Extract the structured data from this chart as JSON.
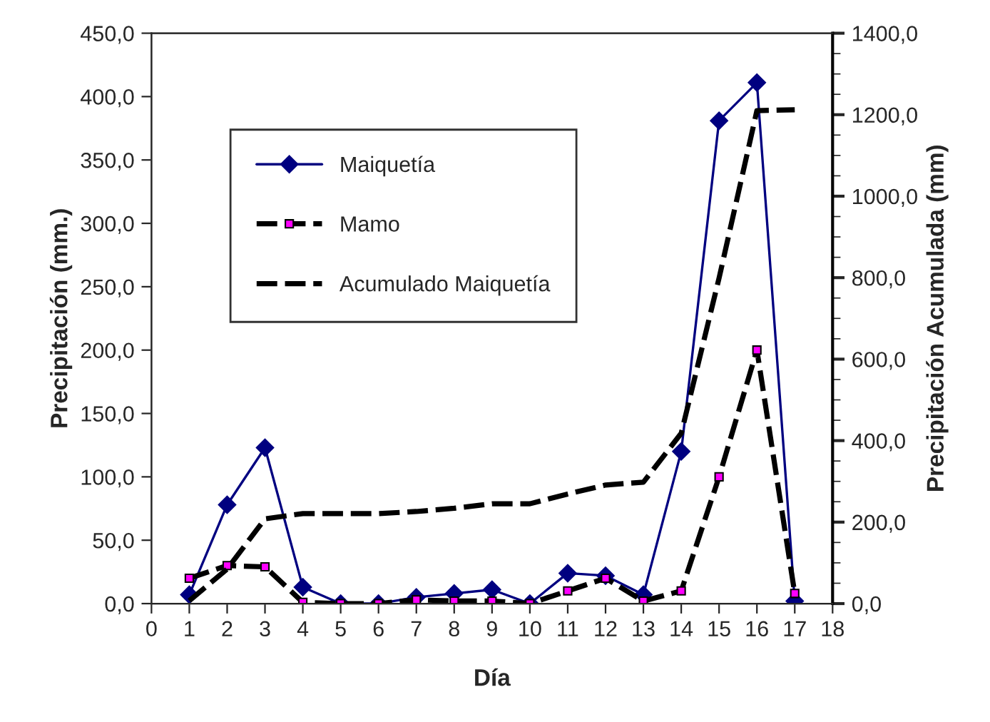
{
  "chart_data": {
    "type": "line",
    "xlabel": "Día",
    "ylabel": "Precipitación (mm.)",
    "y2label": "Precipitación Acumulada (mm)",
    "x": [
      1,
      2,
      3,
      4,
      5,
      6,
      7,
      8,
      9,
      10,
      11,
      12,
      13,
      14,
      15,
      16,
      17
    ],
    "series": [
      {
        "name": "Maiquetía",
        "color": "#000080",
        "marker": "diamond",
        "line_style": "solid",
        "values": [
          7,
          78,
          123,
          13,
          0,
          0,
          5,
          8,
          11,
          0,
          24,
          22,
          7,
          120,
          381,
          411,
          2
        ]
      },
      {
        "name": "Mamo",
        "color": "#000000",
        "marker": "square",
        "line_style": "dashed",
        "values": [
          20,
          30,
          29,
          1,
          0,
          0,
          3,
          2,
          2,
          0,
          10,
          20,
          2,
          10,
          100,
          200,
          8
        ]
      },
      {
        "name": "Acumulado Maiquetía",
        "color": "#000000",
        "marker": "none",
        "line_style": "dashed",
        "axis": "y2",
        "values": [
          7,
          85,
          208,
          221,
          221,
          221,
          226,
          234,
          245,
          245,
          269,
          291,
          298,
          418,
          799,
          1210,
          1212
        ]
      }
    ],
    "xlim": [
      0,
      18
    ],
    "xticks": [
      0,
      1,
      2,
      3,
      4,
      5,
      6,
      7,
      8,
      9,
      10,
      11,
      12,
      13,
      14,
      15,
      16,
      17,
      18
    ],
    "ylim": [
      0,
      450
    ],
    "yticks": [
      {
        "value": 0,
        "label": "0,0"
      },
      {
        "value": 50,
        "label": "50,0"
      },
      {
        "value": 100,
        "label": "100,0"
      },
      {
        "value": 150,
        "label": "150,0"
      },
      {
        "value": 200,
        "label": "200,0"
      },
      {
        "value": 250,
        "label": "250,0"
      },
      {
        "value": 300,
        "label": "300,0"
      },
      {
        "value": 350,
        "label": "350,0"
      },
      {
        "value": 400,
        "label": "400,0"
      },
      {
        "value": 450,
        "label": "450,0"
      }
    ],
    "y2lim": [
      0,
      1400
    ],
    "y2ticks": [
      {
        "value": 0,
        "label": "0,0"
      },
      {
        "value": 200,
        "label": "200,0"
      },
      {
        "value": 400,
        "label": "400,0"
      },
      {
        "value": 600,
        "label": "600,0"
      },
      {
        "value": 800,
        "label": "800,0"
      },
      {
        "value": 1000,
        "label": "1000,0"
      },
      {
        "value": 1200,
        "label": "1200,0"
      },
      {
        "value": 1400,
        "label": "1400,0"
      }
    ],
    "legend": "top left",
    "grid": false
  }
}
